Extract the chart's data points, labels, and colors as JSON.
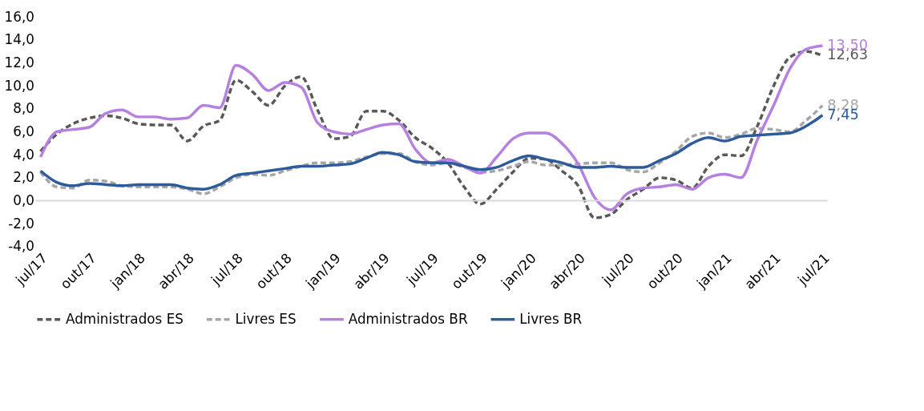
{
  "chart_data": {
    "type": "line",
    "categories": [
      "jul/17",
      null,
      null,
      "out/17",
      null,
      null,
      "jan/18",
      null,
      null,
      "abr/18",
      null,
      null,
      "jul/18",
      null,
      null,
      "out/18",
      null,
      null,
      "jan/19",
      null,
      null,
      "abr/19",
      null,
      null,
      "jul/19",
      null,
      null,
      "out/19",
      null,
      null,
      "jan/20",
      null,
      null,
      "abr/20",
      null,
      null,
      "jul/20",
      null,
      null,
      "out/20",
      null,
      null,
      "jan/21",
      null,
      null,
      "abr/21",
      null,
      null,
      "jul/21"
    ],
    "series": [
      {
        "name": "Administrados ES",
        "color": "#595959",
        "line_style": "dashed",
        "values": [
          4.3,
          5.8,
          6.7,
          7.2,
          7.4,
          7.2,
          6.7,
          6.6,
          6.6,
          5.2,
          6.5,
          7.0,
          10.5,
          9.5,
          8.3,
          10.0,
          10.8,
          7.9,
          5.4,
          5.6,
          7.8,
          7.8,
          7.0,
          5.5,
          4.6,
          3.3,
          1.2,
          -0.3,
          1.0,
          2.5,
          3.7,
          3.6,
          2.6,
          1.3,
          -1.5,
          -1.2,
          0.1,
          1.0,
          2.0,
          1.8,
          1.1,
          3.0,
          4.0,
          3.9,
          6.5,
          10.0,
          12.5,
          13.0,
          12.63
        ],
        "value_labels": [
          null,
          null,
          null,
          null,
          null,
          null,
          null,
          null,
          null,
          null,
          null,
          null,
          null,
          null,
          null,
          null,
          null,
          null,
          null,
          null,
          null,
          null,
          null,
          null,
          null,
          null,
          null,
          null,
          null,
          null,
          null,
          null,
          null,
          null,
          null,
          null,
          null,
          null,
          null,
          null,
          null,
          null,
          null,
          null,
          null,
          null,
          null,
          null,
          "12,63"
        ]
      },
      {
        "name": "Livres ES",
        "color": "#a6a6a6",
        "line_style": "dashed",
        "values": [
          2.5,
          1.2,
          1.1,
          1.8,
          1.7,
          1.3,
          1.2,
          1.2,
          1.2,
          1.0,
          0.6,
          1.2,
          2.0,
          2.3,
          2.2,
          2.6,
          3.0,
          3.3,
          3.3,
          3.4,
          3.8,
          4.1,
          4.1,
          3.4,
          3.1,
          3.3,
          2.9,
          2.5,
          2.6,
          3.0,
          3.4,
          3.1,
          3.1,
          3.2,
          3.3,
          3.3,
          2.7,
          2.5,
          3.3,
          4.3,
          5.6,
          5.9,
          5.5,
          5.8,
          6.3,
          6.2,
          6.0,
          7.0,
          8.28
        ],
        "value_labels": [
          null,
          null,
          null,
          null,
          null,
          null,
          null,
          null,
          null,
          null,
          null,
          null,
          null,
          null,
          null,
          null,
          null,
          null,
          null,
          null,
          null,
          null,
          null,
          null,
          null,
          null,
          null,
          null,
          null,
          null,
          null,
          null,
          null,
          null,
          null,
          null,
          null,
          null,
          null,
          null,
          null,
          null,
          null,
          null,
          null,
          null,
          null,
          null,
          "8,28"
        ]
      },
      {
        "name": "Administrados BR",
        "color": "#b580e0",
        "line_style": "solid",
        "values": [
          3.8,
          6.0,
          6.2,
          6.4,
          7.6,
          7.9,
          7.3,
          7.3,
          7.1,
          7.2,
          8.3,
          8.1,
          11.8,
          11.0,
          9.6,
          10.3,
          9.9,
          6.8,
          6.0,
          5.8,
          6.2,
          6.6,
          6.7,
          4.5,
          3.3,
          3.6,
          3.0,
          2.4,
          3.8,
          5.4,
          5.9,
          5.9,
          5.0,
          3.2,
          0.3,
          -0.8,
          0.6,
          1.1,
          1.2,
          1.4,
          1.0,
          2.0,
          2.3,
          2.0,
          5.3,
          8.3,
          11.5,
          13.2,
          13.5
        ],
        "value_labels": [
          null,
          null,
          null,
          null,
          null,
          null,
          null,
          null,
          null,
          null,
          null,
          null,
          null,
          null,
          null,
          null,
          null,
          null,
          null,
          null,
          null,
          null,
          null,
          null,
          null,
          null,
          null,
          null,
          null,
          null,
          null,
          null,
          null,
          null,
          null,
          null,
          null,
          null,
          null,
          null,
          null,
          null,
          null,
          null,
          null,
          null,
          null,
          null,
          "13,50"
        ]
      },
      {
        "name": "Livres BR",
        "color": "#2e5c9a",
        "line_style": "solid",
        "values": [
          2.6,
          1.6,
          1.3,
          1.5,
          1.4,
          1.3,
          1.4,
          1.4,
          1.4,
          1.1,
          1.0,
          1.4,
          2.2,
          2.4,
          2.6,
          2.8,
          3.0,
          3.0,
          3.1,
          3.2,
          3.7,
          4.2,
          4.0,
          3.4,
          3.3,
          3.3,
          3.0,
          2.7,
          2.9,
          3.5,
          3.9,
          3.6,
          3.3,
          2.9,
          2.9,
          3.0,
          2.9,
          2.9,
          3.5,
          4.1,
          5.0,
          5.5,
          5.2,
          5.6,
          5.7,
          5.8,
          5.9,
          6.5,
          7.45
        ],
        "value_labels": [
          null,
          null,
          null,
          null,
          null,
          null,
          null,
          null,
          null,
          null,
          null,
          null,
          null,
          null,
          null,
          null,
          null,
          null,
          null,
          null,
          null,
          null,
          null,
          null,
          null,
          null,
          null,
          null,
          null,
          null,
          null,
          null,
          null,
          null,
          null,
          null,
          null,
          null,
          null,
          null,
          null,
          null,
          null,
          null,
          null,
          null,
          null,
          null,
          "7,45"
        ]
      }
    ],
    "ylim": [
      -4,
      16
    ],
    "yticks": [
      {
        "value": -4,
        "label": "-4,0"
      },
      {
        "value": -2,
        "label": "-2,0"
      },
      {
        "value": 0,
        "label": "0,0"
      },
      {
        "value": 2,
        "label": "2,0"
      },
      {
        "value": 4,
        "label": "4,0"
      },
      {
        "value": 6,
        "label": "6,0"
      },
      {
        "value": 8,
        "label": "8,0"
      },
      {
        "value": 10,
        "label": "10,0"
      },
      {
        "value": 12,
        "label": "12,0"
      },
      {
        "value": 14,
        "label": "14,0"
      },
      {
        "value": 16,
        "label": "16,0"
      }
    ],
    "ref_lines": [
      {
        "axis": "y",
        "value": 0,
        "color": "#d9d9d9"
      }
    ],
    "grid": false,
    "legend": "bottom",
    "marker": "none"
  }
}
